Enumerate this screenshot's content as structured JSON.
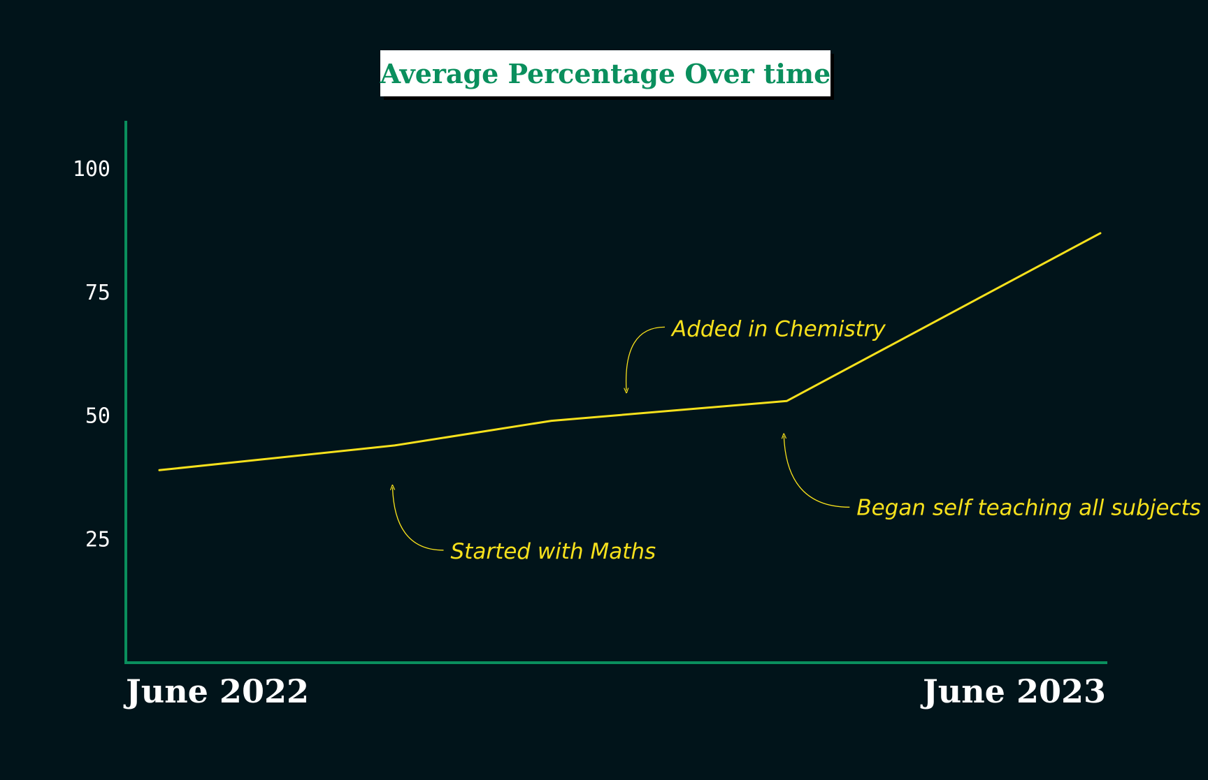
{
  "chart_data": {
    "type": "line",
    "title": "Average Percentage Over time",
    "xlabel": "",
    "ylabel": "",
    "x": [
      "2022-06",
      "2022-09",
      "2022-11",
      "2023-02",
      "2023-06"
    ],
    "x_tick_labels": [
      "June 2022",
      "June 2023"
    ],
    "xlim": [
      "2022-06",
      "2023-06"
    ],
    "y_ticks": [
      25,
      50,
      75,
      100
    ],
    "ylim": [
      0,
      113
    ],
    "grid": false,
    "series": [
      {
        "values": [
          39,
          44,
          49,
          53,
          87
        ]
      }
    ],
    "annotations": [
      {
        "text": "Started with Maths",
        "x": "2022-09",
        "y": 44
      },
      {
        "text": "Added in Chemistry",
        "x": "2022-12",
        "y": 52
      },
      {
        "text": "Began self teaching all subjects",
        "x": "2023-02",
        "y": 53
      }
    ],
    "colors": {
      "background": "#01141a",
      "axis": "#0a8f5d",
      "line": "#f7e11c",
      "title": "#0a8f5d",
      "title_box": "#ffffff",
      "tick_text": "#ffffff"
    }
  }
}
